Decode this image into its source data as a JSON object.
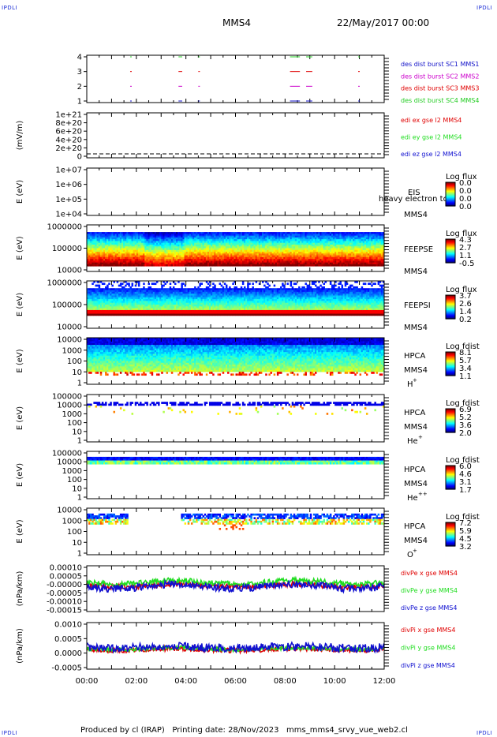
{
  "page": {
    "corner_label": "IPDLI",
    "spacecraft": "MMS4",
    "date": "22/May/2017 00:00",
    "footer": "Produced by cl (IRAP)   Printing date: 28/Nov/2023   mms_mms4_srvy_vue_web2.cl"
  },
  "colors": {
    "sc1": "#1010c8",
    "sc2": "#cc00cc",
    "sc3": "#e00000",
    "sc4": "#22cc22",
    "x_comp": "#e00000",
    "y_comp": "#20dd20",
    "z_comp": "#1010d0"
  },
  "chart_data": {
    "type": "stack-plot",
    "x_ticks": [
      "00:00",
      "02:00",
      "04:00",
      "06:00",
      "08:00",
      "10:00",
      "12:00"
    ],
    "x_range_hours": [
      0,
      12
    ],
    "panels": [
      {
        "id": "burst",
        "y_ticks": [
          "4",
          "3",
          "2",
          "1"
        ],
        "legend": [
          "des dist burst SC1 MMS1",
          "des dist burst SC2 MMS2",
          "des dist burst SC3 MMS3",
          "des dist burst SC4 MMS4"
        ],
        "bursts_hours": [
          [
            1.75,
            1.8
          ],
          [
            3.7,
            3.85
          ],
          [
            4.5,
            4.55
          ],
          [
            8.2,
            8.6
          ],
          [
            8.85,
            9.1
          ],
          [
            10.95,
            11.0
          ]
        ]
      },
      {
        "id": "edi",
        "ylabel": "(mV/m)",
        "y_ticks": [
          "1e+21",
          "8e+20",
          "6e+20",
          "4e+20",
          "2e+20",
          "0"
        ],
        "legend": [
          "edi ex gse l2 MMS4",
          "edi ey gse l2 MMS4",
          "edi ez gse l2 MMS4"
        ]
      },
      {
        "id": "eis",
        "ylabel": "E (eV)",
        "y_ticks": [
          "1e+07",
          "1e+06",
          "1e+05",
          "1e+04"
        ],
        "inst": "EIS",
        "extra": "heavy electron to",
        "sc": "MMS4",
        "cbar_title": "Log flux",
        "cbar_ticks": [
          "0.0",
          "0.0",
          "0.0",
          "0.0"
        ]
      },
      {
        "id": "feepse",
        "ylabel": "E (eV)",
        "y_ticks": [
          "1000000",
          "100000",
          "10000"
        ],
        "inst": "FEEPSE",
        "sc": "MMS4",
        "cbar_title": "Log flux",
        "cbar_ticks": [
          "4.3",
          "2.7",
          "1.1",
          "-0.5"
        ]
      },
      {
        "id": "feepsi",
        "ylabel": "E (eV)",
        "y_ticks": [
          "1000000",
          "100000",
          "10000"
        ],
        "inst": "FEEPSI",
        "sc": "MMS4",
        "cbar_title": "Log flux",
        "cbar_ticks": [
          "3.7",
          "2.6",
          "1.4",
          "0.2"
        ]
      },
      {
        "id": "hpca_h",
        "ylabel": "E (eV)",
        "y_ticks": [
          "10000",
          "1000",
          "100",
          "10",
          "1"
        ],
        "inst": "HPCA",
        "sc": "MMS4",
        "species": "H",
        "species_sup": "+",
        "cbar_title": "Log fdist",
        "cbar_ticks": [
          "8.1",
          "5.7",
          "3.4",
          "1.1"
        ]
      },
      {
        "id": "hpca_he",
        "ylabel": "E (eV)",
        "y_ticks": [
          "100000",
          "10000",
          "1000",
          "100",
          "10",
          "1"
        ],
        "inst": "HPCA",
        "sc": "MMS4",
        "species": "He",
        "species_sup": "+",
        "cbar_title": "Log fdist",
        "cbar_ticks": [
          "6.9",
          "5.2",
          "3.6",
          "2.0"
        ]
      },
      {
        "id": "hpca_hepp",
        "ylabel": "E (eV)",
        "y_ticks": [
          "100000",
          "10000",
          "1000",
          "100",
          "10",
          "1"
        ],
        "inst": "HPCA",
        "sc": "MMS4",
        "species": "He",
        "species_sup": "++",
        "cbar_title": "Log fdist",
        "cbar_ticks": [
          "6.0",
          "4.6",
          "3.1",
          "1.7"
        ]
      },
      {
        "id": "hpca_o",
        "ylabel": "E (eV)",
        "y_ticks": [
          "10000",
          "1000",
          "100",
          "10",
          "1"
        ],
        "inst": "HPCA",
        "sc": "MMS4",
        "species": "O",
        "species_sup": "+",
        "cbar_title": "Log fdist",
        "cbar_ticks": [
          "7.2",
          "5.9",
          "4.5",
          "3.2"
        ]
      },
      {
        "id": "divpe",
        "ylabel": "(nPa/km)",
        "y_ticks": [
          "0.00010",
          "0.00005",
          "-0.00000",
          "-0.00005",
          "-0.00010",
          "-0.00015"
        ],
        "legend": [
          "divPe x gse MMS4",
          "divPe y gse MMS4",
          "divPe z gse MMS4"
        ]
      },
      {
        "id": "divpi",
        "ylabel": "(nPa/km)",
        "y_ticks": [
          "0.0010",
          "0.0005",
          "0.0000",
          "-0.0005"
        ],
        "legend": [
          "divPi x gse MMS4",
          "divPi y gse MMS4",
          "divPi z gse MMS4"
        ]
      }
    ]
  }
}
